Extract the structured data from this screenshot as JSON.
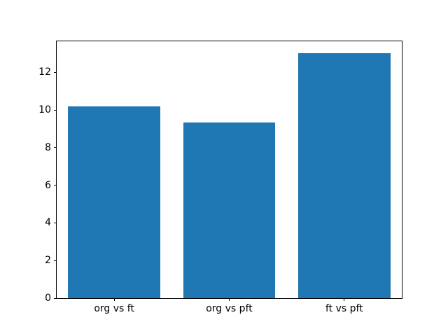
{
  "chart_data": {
    "type": "bar",
    "categories": [
      "org vs ft",
      "org vs pft",
      "ft vs pft"
    ],
    "values": [
      10.2,
      9.35,
      13.0
    ],
    "title": "",
    "xlabel": "",
    "ylabel": "",
    "ylim": [
      0,
      13.65
    ],
    "yticks": [
      0,
      2,
      4,
      6,
      8,
      10,
      12
    ],
    "bar_color": "#1f77b4",
    "axis_color": "#000000",
    "background_color": "#ffffff",
    "grid": false,
    "legend": false
  }
}
